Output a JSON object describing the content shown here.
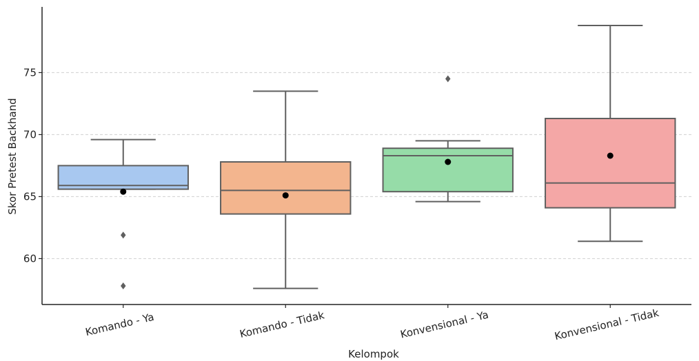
{
  "chart_data": {
    "type": "box",
    "xlabel": "Kelompok",
    "ylabel": "Skor Pretest Backhand",
    "ylim": [
      56.3,
      80.3
    ],
    "yticks": [
      60,
      65,
      70,
      75
    ],
    "grid": true,
    "categories": [
      "Komando - Ya",
      "Komando - Tidak",
      "Konvensional - Ya",
      "Konvensional - Tidak"
    ],
    "colors": [
      "#a8c8f0",
      "#f3b58e",
      "#96dca8",
      "#f4a7a6"
    ],
    "boxes": [
      {
        "whisker_low": 65.6,
        "q1": 65.6,
        "median": 65.9,
        "q3": 67.5,
        "whisker_high": 69.6,
        "mean": 65.4,
        "outliers": [
          61.9,
          57.8
        ]
      },
      {
        "whisker_low": 57.6,
        "q1": 63.6,
        "median": 65.5,
        "q3": 67.8,
        "whisker_high": 73.5,
        "mean": 65.1,
        "outliers": []
      },
      {
        "whisker_low": 64.6,
        "q1": 65.4,
        "median": 68.3,
        "q3": 68.9,
        "whisker_high": 69.5,
        "mean": 67.8,
        "outliers": [
          74.5
        ]
      },
      {
        "whisker_low": 61.4,
        "q1": 64.1,
        "median": 66.1,
        "q3": 71.3,
        "whisker_high": 78.8,
        "mean": 68.3,
        "outliers": []
      }
    ]
  }
}
